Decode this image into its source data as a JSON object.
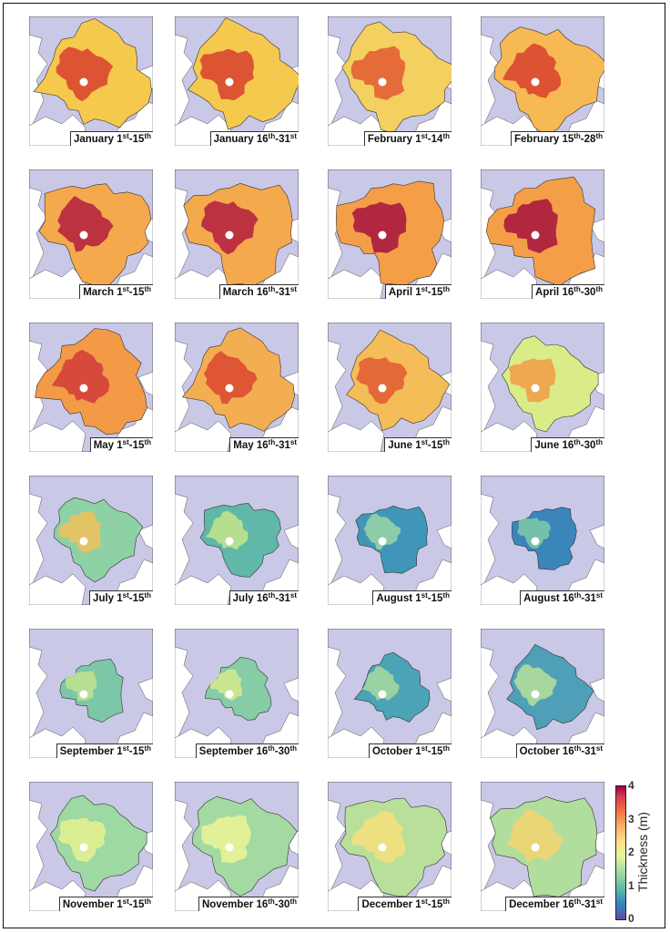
{
  "panels": [
    {
      "month": "January",
      "s": "1",
      "ss": "st",
      "e": "15",
      "es": "th",
      "color": "#f5c84e",
      "core": "#d8402e",
      "extent": 1.0
    },
    {
      "month": "January",
      "s": "16",
      "ss": "th",
      "e": "31",
      "es": "st",
      "color": "#f5c84e",
      "core": "#d8402e",
      "extent": 1.0
    },
    {
      "month": "February",
      "s": "1",
      "ss": "st",
      "e": "14",
      "es": "th",
      "color": "#f3d060",
      "core": "#e25a33",
      "extent": 1.0
    },
    {
      "month": "February",
      "s": "15",
      "ss": "th",
      "e": "28",
      "es": "th",
      "color": "#f6b953",
      "core": "#d8402e",
      "extent": 1.0
    },
    {
      "month": "March",
      "s": "1",
      "ss": "st",
      "e": "15",
      "es": "th",
      "color": "#f5a94d",
      "core": "#b31d3f",
      "extent": 1.0
    },
    {
      "month": "March",
      "s": "16",
      "ss": "th",
      "e": "31",
      "es": "st",
      "color": "#f5a94d",
      "core": "#b31d3f",
      "extent": 1.0
    },
    {
      "month": "April",
      "s": "1",
      "ss": "st",
      "e": "15",
      "es": "th",
      "color": "#f59e48",
      "core": "#a6123f",
      "extent": 1.0
    },
    {
      "month": "April",
      "s": "16",
      "ss": "th",
      "e": "30",
      "es": "th",
      "color": "#f59e48",
      "core": "#a6123f",
      "extent": 1.0
    },
    {
      "month": "May",
      "s": "1",
      "ss": "st",
      "e": "15",
      "es": "th",
      "color": "#f39a47",
      "core": "#d13b3a",
      "extent": 0.98
    },
    {
      "month": "May",
      "s": "16",
      "ss": "th",
      "e": "31",
      "es": "st",
      "color": "#f4ae52",
      "core": "#d9472f",
      "extent": 0.95
    },
    {
      "month": "June",
      "s": "1",
      "ss": "st",
      "e": "15",
      "es": "th",
      "color": "#f5bd57",
      "core": "#e05a33",
      "extent": 0.9
    },
    {
      "month": "June",
      "s": "16",
      "ss": "th",
      "e": "30",
      "es": "th",
      "color": "#d9ec88",
      "core": "#f29b47",
      "extent": 0.86
    },
    {
      "month": "July",
      "s": "1",
      "ss": "st",
      "e": "15",
      "es": "th",
      "color": "#8ed1a4",
      "core": "#f1c15a",
      "extent": 0.78
    },
    {
      "month": "July",
      "s": "16",
      "ss": "th",
      "e": "31",
      "es": "st",
      "color": "#5fb8a8",
      "core": "#c6e48b",
      "extent": 0.72
    },
    {
      "month": "August",
      "s": "1",
      "ss": "st",
      "e": "15",
      "es": "th",
      "color": "#3f96b9",
      "core": "#9bd6a4",
      "extent": 0.66
    },
    {
      "month": "August",
      "s": "16",
      "ss": "th",
      "e": "31",
      "es": "st",
      "color": "#3a86bb",
      "core": "#7fcaa6",
      "extent": 0.6
    },
    {
      "month": "September",
      "s": "1",
      "ss": "st",
      "e": "15",
      "es": "th",
      "color": "#7cc7a7",
      "core": "#c1e38d",
      "extent": 0.58
    },
    {
      "month": "September",
      "s": "16",
      "ss": "th",
      "e": "30",
      "es": "th",
      "color": "#86cca6",
      "core": "#d4ea8c",
      "extent": 0.58
    },
    {
      "month": "October",
      "s": "1",
      "ss": "st",
      "e": "15",
      "es": "th",
      "color": "#4ba4b6",
      "core": "#a9dba0",
      "extent": 0.64
    },
    {
      "month": "October",
      "s": "16",
      "ss": "th",
      "e": "31",
      "es": "st",
      "color": "#4f9fb8",
      "core": "#b6df99",
      "extent": 0.76
    },
    {
      "month": "November",
      "s": "1",
      "ss": "st",
      "e": "15",
      "es": "th",
      "color": "#9ed8a3",
      "core": "#e6f292",
      "extent": 0.86
    },
    {
      "month": "November",
      "s": "16",
      "ss": "th",
      "e": "30",
      "es": "th",
      "color": "#a4daa2",
      "core": "#edf495",
      "extent": 0.92
    },
    {
      "month": "December",
      "s": "1",
      "ss": "st",
      "e": "15",
      "es": "th",
      "color": "#b8e09b",
      "core": "#f6df7d",
      "extent": 0.96
    },
    {
      "month": "December",
      "s": "16",
      "ss": "th",
      "e": "31",
      "es": "st",
      "color": "#b1dd9d",
      "core": "#f4d570",
      "extent": 0.98
    }
  ],
  "colorbar": {
    "label": "Thickness (m)",
    "ticks": [
      "4",
      "3",
      "2",
      "1",
      "0"
    ],
    "range": [
      0,
      4
    ],
    "colors": [
      "#5e4fa2",
      "#3288bd",
      "#66c2a5",
      "#abdda4",
      "#e6f598",
      "#fee08b",
      "#fdae61",
      "#f46d43",
      "#d53e4f",
      "#9e0142"
    ]
  },
  "ocean_color": "#c9c8e6",
  "land_color": "#ffffff"
}
